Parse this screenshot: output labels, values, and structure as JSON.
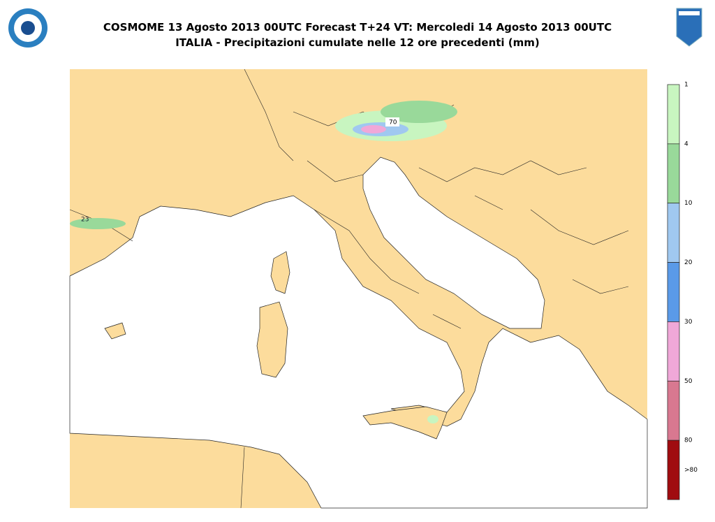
{
  "header": {
    "title": "COSMOME 13 Agosto 2013 00UTC Forecast T+24 VT: Mercoledi 14 Agosto 2013 00UTC",
    "subtitle": "ITALIA - Precipitazioni cumulate nelle 12 ore precedenti (mm)"
  },
  "legend": {
    "labels": [
      "1",
      "4",
      "10",
      "20",
      "30",
      "50",
      "80",
      ">80"
    ],
    "colors": [
      "#c8f5c0",
      "#99d99a",
      "#a0c8f0",
      "#5a9ae8",
      "#f0a8d8",
      "#d87890",
      "#a00c10"
    ]
  },
  "map_labels": [
    "70",
    "23"
  ]
}
